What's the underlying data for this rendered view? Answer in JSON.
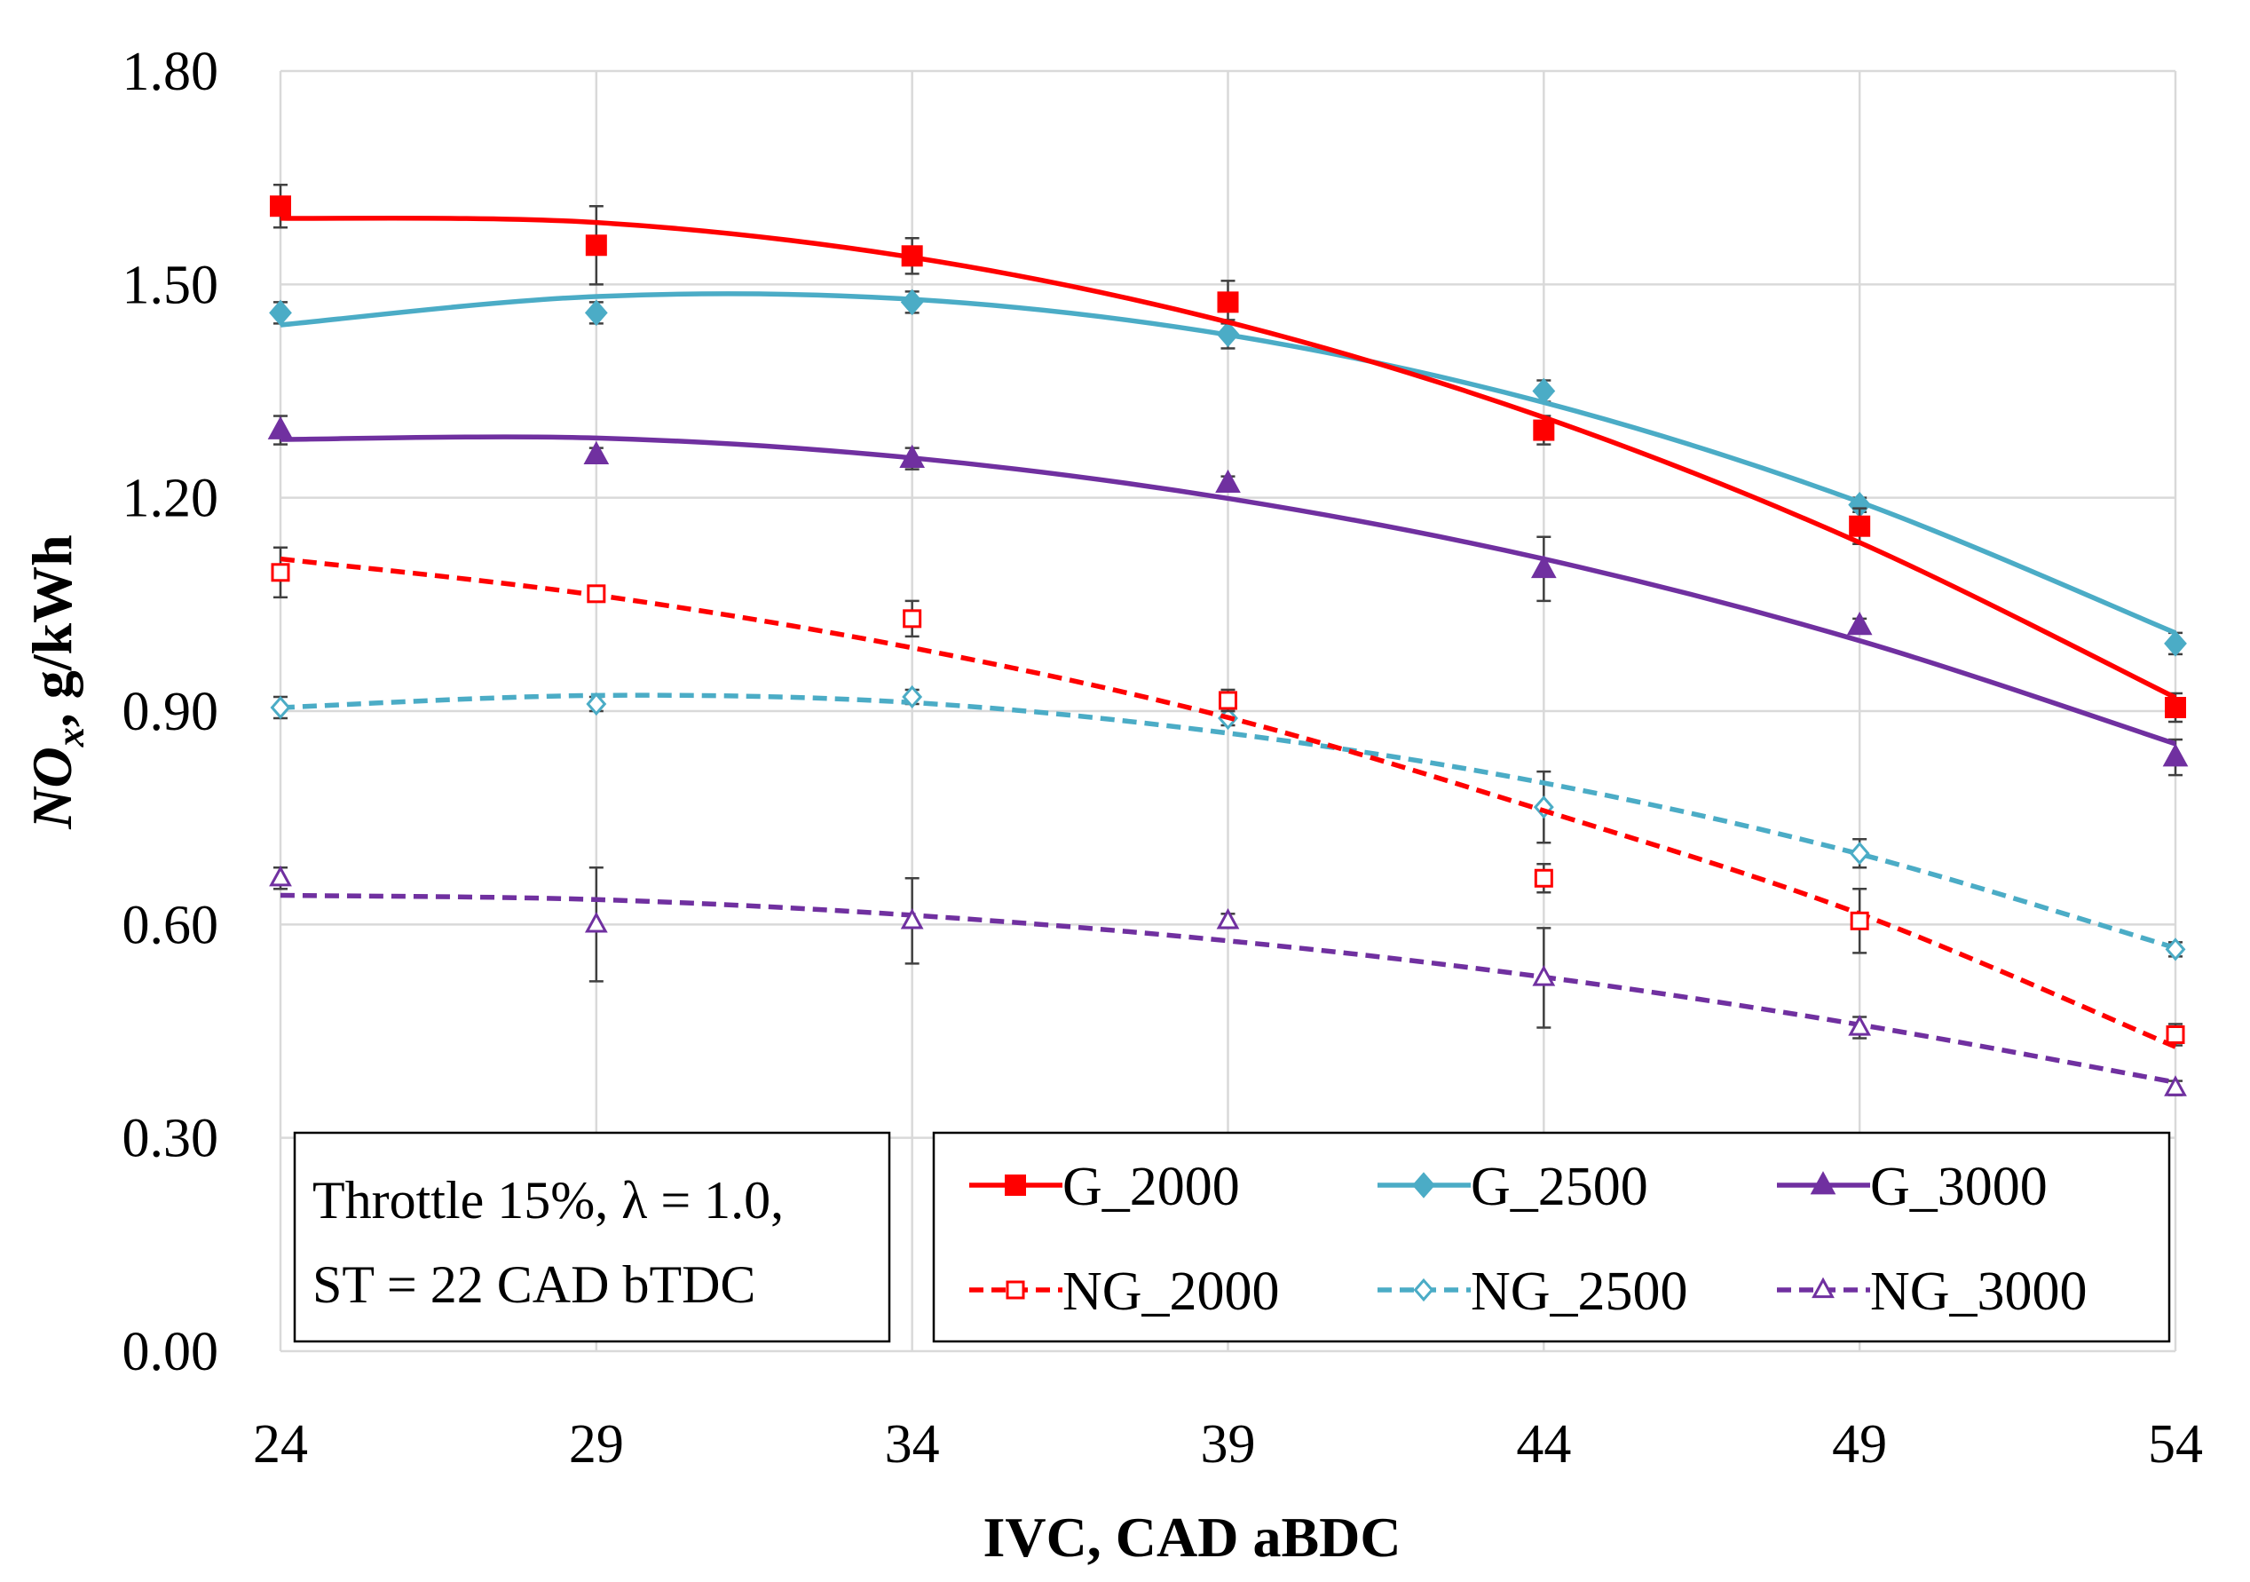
{
  "chart_data": {
    "type": "line",
    "title": "",
    "xlabel": "IVC, CAD aBDC",
    "ylabel": "NOx, g/kWh",
    "ylabel_parts": {
      "main": "NO",
      "subscript": "x",
      "rest": ", g/kWh"
    },
    "x": [
      24,
      29,
      34,
      39,
      44,
      49,
      54
    ],
    "x_tick_labels": [
      "24",
      "29",
      "34",
      "39",
      "44",
      "49",
      "54"
    ],
    "y_tick_labels": [
      "0.00",
      "0.30",
      "0.60",
      "0.90",
      "1.20",
      "1.50",
      "1.80"
    ],
    "xlim": [
      24,
      54
    ],
    "ylim": [
      0,
      1.8
    ],
    "y_ticks": [
      0,
      0.3,
      0.6,
      0.9,
      1.2,
      1.5,
      1.8
    ],
    "grid": true,
    "annotation": {
      "line1": "Throttle 15%, λ = 1.0,",
      "line2": "ST = 22 CAD bTDC"
    },
    "series": [
      {
        "name": "G_2000",
        "color": "#ff0000",
        "marker": "square",
        "filled": true,
        "dashed": false,
        "values": [
          1.61,
          1.555,
          1.54,
          1.475,
          1.295,
          1.16,
          0.905
        ],
        "error": [
          0.03,
          0.055,
          0.025,
          0.03,
          0.02,
          0.025,
          0.02
        ],
        "trend": [
          1.593,
          1.587,
          1.538,
          1.447,
          1.313,
          1.137,
          0.919
        ]
      },
      {
        "name": "G_2500",
        "color": "#4bacc6",
        "marker": "diamond",
        "filled": true,
        "dashed": false,
        "values": [
          1.46,
          1.46,
          1.475,
          1.43,
          1.35,
          1.19,
          0.995
        ],
        "error": [
          0.015,
          0.015,
          0.015,
          0.02,
          0.015,
          0.01,
          0.015
        ],
        "trend": [
          1.443,
          1.483,
          1.479,
          1.429,
          1.334,
          1.194,
          1.01
        ]
      },
      {
        "name": "G_3000",
        "color": "#7030a0",
        "marker": "triangle",
        "filled": true,
        "dashed": false,
        "values": [
          1.295,
          1.26,
          1.255,
          1.22,
          1.1,
          1.02,
          0.835
        ],
        "error": [
          0.02,
          0.01,
          0.015,
          0.01,
          0.045,
          0.01,
          0.025
        ],
        "trend": [
          1.282,
          1.284,
          1.256,
          1.199,
          1.114,
          0.999,
          0.854
        ]
      },
      {
        "name": "NG_2000",
        "color": "#ff0000",
        "marker": "square",
        "filled": false,
        "dashed": true,
        "values": [
          1.095,
          1.065,
          1.03,
          0.915,
          0.665,
          0.605,
          0.445
        ],
        "error": [
          0.035,
          0.01,
          0.025,
          0.015,
          0.02,
          0.045,
          0.015
        ],
        "trend": [
          1.114,
          1.063,
          0.989,
          0.891,
          0.76,
          0.615,
          0.428
        ]
      },
      {
        "name": "NG_2500",
        "color": "#4bacc6",
        "marker": "diamond",
        "filled": false,
        "dashed": true,
        "values": [
          0.905,
          0.91,
          0.92,
          0.89,
          0.765,
          0.7,
          0.565
        ],
        "error": [
          0.015,
          0.01,
          0.01,
          0.01,
          0.05,
          0.02,
          0.01
        ],
        "trend": [
          0.905,
          0.922,
          0.912,
          0.869,
          0.799,
          0.699,
          0.567
        ]
      },
      {
        "name": "NG_3000",
        "color": "#7030a0",
        "marker": "triangle",
        "filled": false,
        "dashed": true,
        "values": [
          0.665,
          0.6,
          0.605,
          0.605,
          0.525,
          0.455,
          0.37
        ],
        "error": [
          0.015,
          0.08,
          0.06,
          0.01,
          0.07,
          0.015,
          0.01
        ],
        "trend": [
          0.641,
          0.635,
          0.613,
          0.577,
          0.526,
          0.459,
          0.378
        ]
      }
    ]
  }
}
